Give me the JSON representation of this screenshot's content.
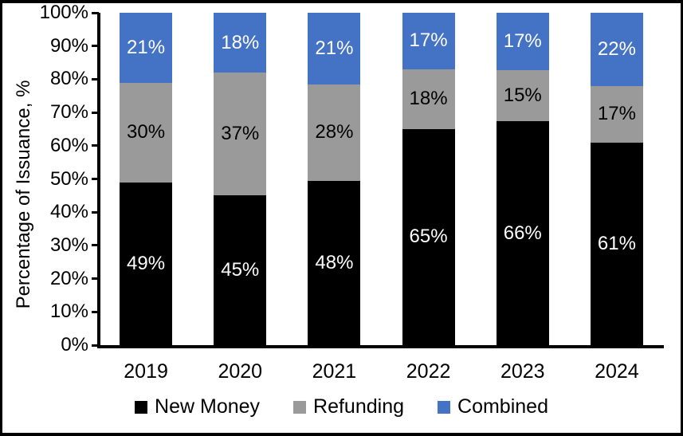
{
  "chart_data": {
    "type": "bar",
    "variant": "stacked-100-percent",
    "ylabel": "Percentage of Issuance, %",
    "categories": [
      "2019",
      "2020",
      "2021",
      "2022",
      "2023",
      "2024"
    ],
    "series": [
      {
        "name": "New Money",
        "color": "#000000",
        "label_color": "#ffffff",
        "values": [
          49,
          45,
          48,
          65,
          66,
          61
        ]
      },
      {
        "name": "Refunding",
        "color": "#9a9a9a",
        "label_color": "#000000",
        "values": [
          30,
          37,
          28,
          18,
          15,
          17
        ]
      },
      {
        "name": "Combined",
        "color": "#4472c4",
        "label_color": "#ffffff",
        "values": [
          21,
          18,
          21,
          17,
          17,
          22
        ]
      }
    ],
    "data_label_suffix": "%",
    "y_ticks": [
      "0%",
      "10%",
      "20%",
      "30%",
      "40%",
      "50%",
      "60%",
      "70%",
      "80%",
      "90%",
      "100%"
    ],
    "ylim": [
      0,
      100
    ],
    "grid": false,
    "legend_position": "bottom",
    "axis_color": "#000000",
    "background_color": "#ffffff"
  }
}
